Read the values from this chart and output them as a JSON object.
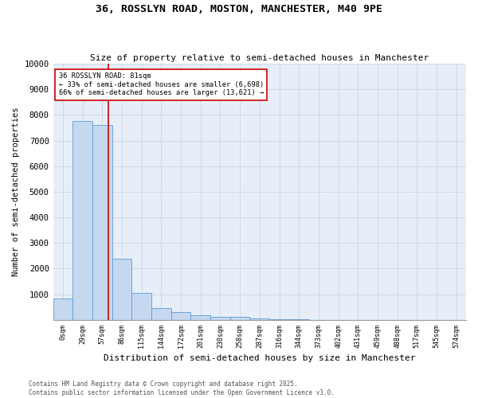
{
  "title": "36, ROSSLYN ROAD, MOSTON, MANCHESTER, M40 9PE",
  "subtitle": "Size of property relative to semi-detached houses in Manchester",
  "xlabel": "Distribution of semi-detached houses by size in Manchester",
  "ylabel": "Number of semi-detached properties",
  "footer1": "Contains HM Land Registry data © Crown copyright and database right 2025.",
  "footer2": "Contains public sector information licensed under the Open Government Licence v3.0.",
  "annotation_line1": "36 ROSSLYN ROAD: 81sqm",
  "annotation_line2": "← 33% of semi-detached houses are smaller (6,698)",
  "annotation_line3": "66% of semi-detached houses are larger (13,621) →",
  "bar_color": "#c5d8f0",
  "bar_edge_color": "#5b9bd5",
  "red_line_color": "#cc0000",
  "grid_color": "#d0d8e8",
  "bg_color": "#e8eef8",
  "bin_labels": [
    "0sqm",
    "29sqm",
    "57sqm",
    "86sqm",
    "115sqm",
    "144sqm",
    "172sqm",
    "201sqm",
    "230sqm",
    "258sqm",
    "287sqm",
    "316sqm",
    "344sqm",
    "373sqm",
    "402sqm",
    "431sqm",
    "459sqm",
    "488sqm",
    "517sqm",
    "545sqm",
    "574sqm"
  ],
  "bar_values": [
    820,
    7780,
    7600,
    2380,
    1040,
    460,
    300,
    180,
    120,
    120,
    60,
    20,
    10,
    5,
    3,
    2,
    1,
    1,
    0,
    0,
    0
  ],
  "ylim": [
    0,
    10000
  ],
  "yticks": [
    0,
    1000,
    2000,
    3000,
    4000,
    5000,
    6000,
    7000,
    8000,
    9000,
    10000
  ],
  "red_line_x": 2.827586206896552,
  "figsize": [
    6.0,
    5.0
  ],
  "dpi": 100
}
